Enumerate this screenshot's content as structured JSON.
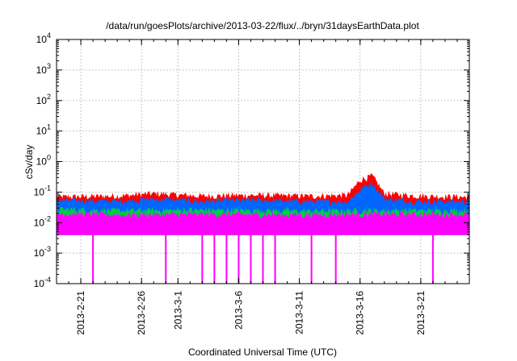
{
  "chart_data": {
    "type": "area",
    "title": "/data/run/goesPlots/archive/2013-03-22/flux/../bryn/31daysEarthData.plot",
    "xlabel": "Coordinated Universal Time (UTC)",
    "ylabel": "cSv/day",
    "x_range": [
      "2013-02-19",
      "2013-03-25"
    ],
    "y_range": [
      0.0001,
      10000
    ],
    "y_scale": "log",
    "grid": true,
    "x_ticks": [
      "2013-2-21",
      "2013-2-26",
      "2013-3-1",
      "2013-3-6",
      "2013-3-11",
      "2013-3-16",
      "2013-3-21"
    ],
    "y_ticks": [
      {
        "base": "10",
        "exp": "-4",
        "value": 0.0001
      },
      {
        "base": "10",
        "exp": "-3",
        "value": 0.001
      },
      {
        "base": "10",
        "exp": "-2",
        "value": 0.01
      },
      {
        "base": "10",
        "exp": "-1",
        "value": 0.1
      },
      {
        "base": "10",
        "exp": "0",
        "value": 1
      },
      {
        "base": "10",
        "exp": "1",
        "value": 10
      },
      {
        "base": "10",
        "exp": "2",
        "value": 100
      },
      {
        "base": "10",
        "exp": "3",
        "value": 1000
      },
      {
        "base": "10",
        "exp": "4",
        "value": 10000
      }
    ],
    "series": [
      {
        "color": "#ff0000",
        "x": [
          "2013-02-19",
          "2013-02-24",
          "2013-02-27",
          "2013-03-03",
          "2013-03-07",
          "2013-03-12",
          "2013-03-15",
          "2013-03-16",
          "2013-03-17",
          "2013-03-18",
          "2013-03-21",
          "2013-03-25"
        ],
        "values": [
          0.07,
          0.075,
          0.09,
          0.075,
          0.08,
          0.075,
          0.08,
          0.25,
          0.35,
          0.09,
          0.075,
          0.07
        ]
      },
      {
        "color": "#0066ff",
        "x": [
          "2013-02-19",
          "2013-02-24",
          "2013-02-27",
          "2013-03-03",
          "2013-03-07",
          "2013-03-12",
          "2013-03-15",
          "2013-03-16",
          "2013-03-17",
          "2013-03-18",
          "2013-03-21",
          "2013-03-25"
        ],
        "values": [
          0.055,
          0.05,
          0.06,
          0.05,
          0.055,
          0.05,
          0.05,
          0.12,
          0.2,
          0.06,
          0.05,
          0.05
        ]
      },
      {
        "color": "#00cc44",
        "x": [
          "2013-02-19",
          "2013-02-24",
          "2013-03-03",
          "2013-03-12",
          "2013-03-17",
          "2013-03-25"
        ],
        "values": [
          0.028,
          0.025,
          0.026,
          0.024,
          0.025,
          0.025
        ]
      },
      {
        "color": "#ff00ff",
        "x": [
          "2013-02-19",
          "2013-02-24",
          "2013-03-03",
          "2013-03-12",
          "2013-03-17",
          "2013-03-25"
        ],
        "values": [
          0.02,
          0.018,
          0.019,
          0.018,
          0.019,
          0.019
        ],
        "floor": 0.004,
        "dips_to_floor": [
          "2013-02-22",
          "2013-02-28",
          "2013-03-03",
          "2013-03-04",
          "2013-03-05",
          "2013-03-06",
          "2013-03-07",
          "2013-03-08",
          "2013-03-09",
          "2013-03-12",
          "2013-03-14",
          "2013-03-22"
        ]
      }
    ]
  }
}
